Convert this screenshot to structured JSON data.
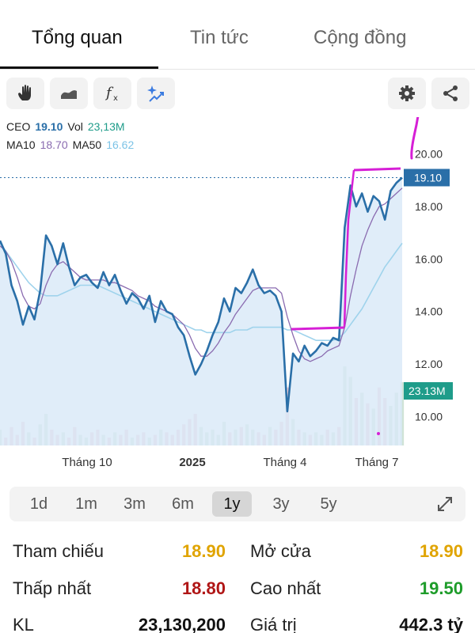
{
  "tabs": [
    {
      "label": "Tổng quan",
      "active": true
    },
    {
      "label": "Tin tức",
      "active": false
    },
    {
      "label": "Cộng đồng",
      "active": false
    }
  ],
  "toolbar": {
    "left_icons": [
      "hand-icon",
      "line-style-icon",
      "function-icon",
      "sparkle-icon"
    ],
    "right_icons": [
      "gear-icon",
      "share-icon"
    ]
  },
  "legend": {
    "ticker": "CEO",
    "price": "19.10",
    "vol_label": "Vol",
    "vol_value": "23,13M",
    "ma10_label": "MA10",
    "ma10_value": "18.70",
    "ma50_label": "MA50",
    "ma50_value": "16.62"
  },
  "colors": {
    "price_line": "#2a6fa8",
    "ma10": "#8a6bb0",
    "ma50": "#9fd3ec",
    "area_fill": "#d8e9f7",
    "annotation": "#d61fd6",
    "volume_label_bg": "#1f9c8a",
    "price_label_bg": "#2a6fa8",
    "ref_yellow": "#e0a400",
    "low_red": "#b01616",
    "high_green": "#1e9c2a"
  },
  "chart_data": {
    "type": "line",
    "y_axis_ticks": [
      "20.00",
      "18.00",
      "16.00",
      "14.00",
      "12.00",
      "10.00"
    ],
    "ylim": [
      8.9,
      20.5
    ],
    "x_axis_ticks": [
      {
        "label": "Tháng 10",
        "bold": false
      },
      {
        "label": "2025",
        "bold": true
      },
      {
        "label": "Tháng 4",
        "bold": false
      },
      {
        "label": "Tháng 7",
        "bold": false
      }
    ],
    "current_price_label": "19.10",
    "current_price": 19.1,
    "volume_label": "23.13M",
    "series": [
      {
        "key": "price",
        "values": [
          16.7,
          16.2,
          15.0,
          14.4,
          13.5,
          14.2,
          13.7,
          14.8,
          16.9,
          16.5,
          15.8,
          16.6,
          15.7,
          15.0,
          15.3,
          15.4,
          15.1,
          14.9,
          15.5,
          15.0,
          15.4,
          14.8,
          14.3,
          14.7,
          14.5,
          14.1,
          14.6,
          13.6,
          14.4,
          14.0,
          13.9,
          13.4,
          13.1,
          12.3,
          11.6,
          12.0,
          12.5,
          13.1,
          13.6,
          14.5,
          14.0,
          14.9,
          14.7,
          15.1,
          15.6,
          15.0,
          14.7,
          14.8,
          14.6,
          14.0,
          10.2,
          12.4,
          12.1,
          12.7,
          12.3,
          12.5,
          12.8,
          12.7,
          13.0,
          12.9,
          17.2,
          18.8,
          18.0,
          18.5,
          17.8,
          18.4,
          18.2,
          17.5,
          18.6,
          18.9,
          19.1
        ]
      },
      {
        "key": "ma10",
        "values": [
          16.5,
          16.3,
          15.9,
          15.3,
          14.6,
          14.2,
          14.1,
          14.3,
          15.0,
          15.5,
          15.8,
          15.9,
          15.7,
          15.5,
          15.3,
          15.2,
          15.2,
          15.2,
          15.2,
          15.1,
          15.1,
          15.0,
          14.9,
          14.8,
          14.6,
          14.5,
          14.4,
          14.2,
          14.1,
          14.0,
          13.9,
          13.7,
          13.5,
          13.1,
          12.6,
          12.3,
          12.3,
          12.5,
          12.8,
          13.2,
          13.5,
          13.9,
          14.2,
          14.5,
          14.8,
          14.9,
          14.9,
          14.9,
          14.9,
          14.7,
          13.8,
          13.1,
          12.5,
          12.2,
          12.1,
          12.2,
          12.3,
          12.5,
          12.6,
          12.7,
          13.4,
          14.6,
          15.6,
          16.5,
          17.1,
          17.6,
          18.0,
          18.1,
          18.3,
          18.5,
          18.7
        ]
      },
      {
        "key": "ma50",
        "values": [
          16.6,
          16.3,
          16.0,
          15.7,
          15.4,
          15.1,
          14.9,
          14.7,
          14.6,
          14.6,
          14.6,
          14.7,
          14.8,
          14.9,
          15.0,
          15.0,
          15.0,
          15.0,
          14.9,
          14.8,
          14.7,
          14.6,
          14.5,
          14.4,
          14.3,
          14.2,
          14.1,
          14.0,
          13.9,
          13.8,
          13.7,
          13.6,
          13.5,
          13.4,
          13.3,
          13.3,
          13.2,
          13.2,
          13.2,
          13.2,
          13.2,
          13.3,
          13.3,
          13.3,
          13.4,
          13.4,
          13.4,
          13.4,
          13.4,
          13.4,
          13.3,
          13.3,
          13.2,
          13.1,
          13.0,
          12.9,
          12.9,
          12.9,
          12.9,
          13.0,
          13.2,
          13.5,
          13.8,
          14.1,
          14.5,
          14.9,
          15.3,
          15.7,
          16.0,
          16.3,
          16.6
        ]
      }
    ],
    "volume": [
      6,
      3,
      7,
      4,
      9,
      5,
      3,
      8,
      12,
      6,
      4,
      5,
      3,
      7,
      4,
      3,
      5,
      6,
      4,
      3,
      5,
      4,
      6,
      3,
      4,
      5,
      3,
      4,
      6,
      5,
      4,
      6,
      8,
      10,
      12,
      7,
      5,
      6,
      4,
      9,
      5,
      6,
      7,
      8,
      6,
      5,
      4,
      7,
      6,
      9,
      22,
      10,
      6,
      5,
      4,
      5,
      4,
      6,
      5,
      7,
      30,
      26,
      18,
      20,
      16,
      14,
      22,
      18,
      15,
      20,
      24
    ]
  },
  "ranges": [
    "1d",
    "1m",
    "3m",
    "6m",
    "1y",
    "3y",
    "5y"
  ],
  "active_range": "1y",
  "stats": {
    "ref_label": "Tham chiếu",
    "ref_value": "18.90",
    "open_label": "Mở cửa",
    "open_value": "18.90",
    "low_label": "Thấp nhất",
    "low_value": "18.80",
    "high_label": "Cao nhất",
    "high_value": "19.50",
    "vol_label": "KL",
    "vol_value": "23,130,200",
    "val_label": "Giá trị",
    "val_value": "442.3 tỷ"
  }
}
